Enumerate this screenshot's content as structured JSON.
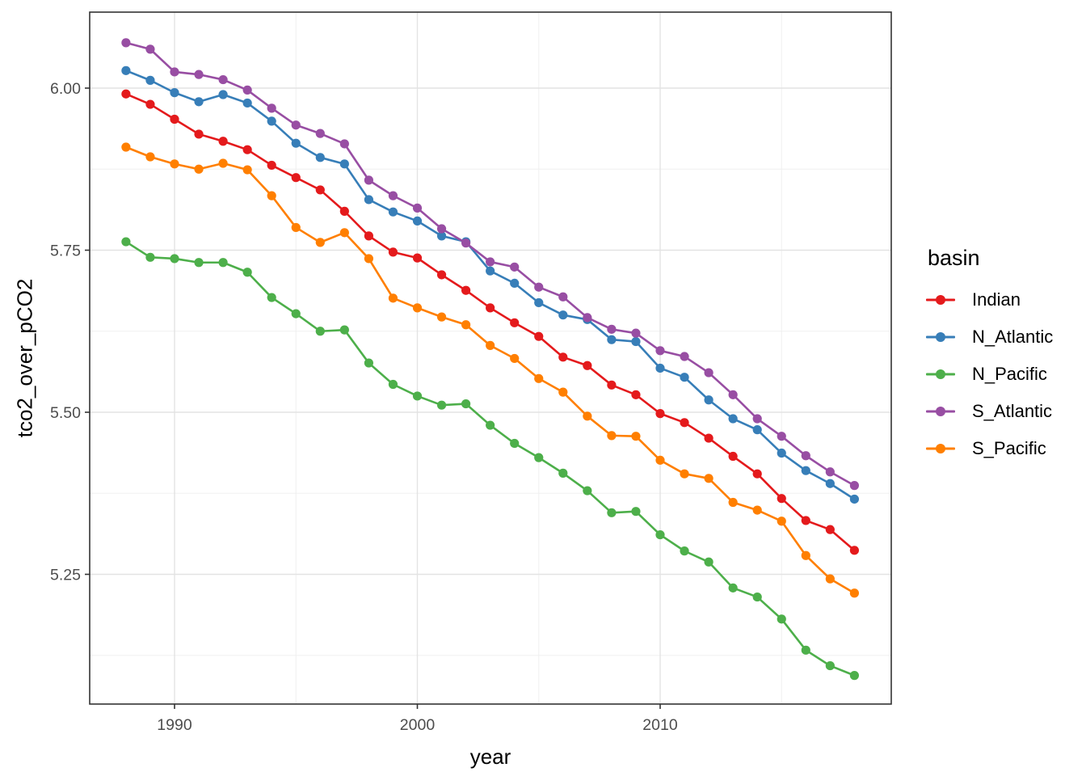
{
  "page": {
    "background": "#ffffff",
    "panel_border_color": "#333333",
    "grid_major_color": "#e3e3e3",
    "grid_minor_color": "#f0f0f0",
    "tick_color": "#333333",
    "tick_label_color": "#4d4d4d"
  },
  "legend": {
    "title": "basin"
  },
  "chart_data": {
    "type": "line",
    "title": "",
    "xlabel": "year",
    "ylabel": "tco2_over_pCO2",
    "legend_title": "basin",
    "legend_position": "right",
    "grid": "on",
    "xlim": [
      1986.4,
      2019.6
    ],
    "ylim": [
      5.046,
      6.118
    ],
    "x_ticks": [
      {
        "value": 1990,
        "label": "1990"
      },
      {
        "value": 2000,
        "label": "2000"
      },
      {
        "value": 2010,
        "label": "2010"
      }
    ],
    "x_minor": [
      1995,
      2005,
      2015
    ],
    "y_ticks": [
      {
        "value": 6.0,
        "label": "6.00"
      },
      {
        "value": 5.75,
        "label": "5.75"
      },
      {
        "value": 5.5,
        "label": "5.50"
      },
      {
        "value": 5.25,
        "label": "5.25"
      }
    ],
    "y_minor": [
      5.875,
      5.625,
      5.375,
      5.125
    ],
    "x": [
      1988,
      1989,
      1990,
      1991,
      1992,
      1993,
      1994,
      1995,
      1996,
      1997,
      1998,
      1999,
      2000,
      2001,
      2002,
      2003,
      2004,
      2005,
      2006,
      2007,
      2008,
      2009,
      2010,
      2011,
      2012,
      2013,
      2014,
      2015,
      2016,
      2017,
      2018
    ],
    "series": [
      {
        "name": "Indian",
        "color": "#E41A1C",
        "values": [
          5.991,
          5.975,
          5.952,
          5.929,
          5.918,
          5.905,
          5.881,
          5.862,
          5.843,
          5.81,
          5.772,
          5.747,
          5.738,
          5.712,
          5.688,
          5.661,
          5.638,
          5.617,
          5.585,
          5.572,
          5.542,
          5.527,
          5.498,
          5.484,
          5.46,
          5.432,
          5.405,
          5.367,
          5.333,
          5.319,
          5.287
        ]
      },
      {
        "name": "N_Atlantic",
        "color": "#377EB8",
        "values": [
          6.027,
          6.012,
          5.993,
          5.979,
          5.99,
          5.977,
          5.949,
          5.915,
          5.893,
          5.883,
          5.828,
          5.809,
          5.795,
          5.772,
          5.763,
          5.718,
          5.699,
          5.669,
          5.65,
          5.643,
          5.612,
          5.609,
          5.568,
          5.554,
          5.519,
          5.49,
          5.473,
          5.437,
          5.41,
          5.39,
          5.366
        ]
      },
      {
        "name": "N_Pacific",
        "color": "#4DAF4A",
        "values": [
          5.763,
          5.739,
          5.737,
          5.731,
          5.731,
          5.716,
          5.677,
          5.652,
          5.625,
          5.627,
          5.576,
          5.543,
          5.525,
          5.511,
          5.513,
          5.48,
          5.452,
          5.43,
          5.406,
          5.379,
          5.345,
          5.347,
          5.311,
          5.286,
          5.269,
          5.229,
          5.215,
          5.181,
          5.133,
          5.109,
          5.094
        ]
      },
      {
        "name": "S_Atlantic",
        "color": "#984EA3",
        "values": [
          6.07,
          6.06,
          6.025,
          6.021,
          6.013,
          5.997,
          5.969,
          5.943,
          5.93,
          5.914,
          5.858,
          5.834,
          5.815,
          5.783,
          5.761,
          5.732,
          5.724,
          5.693,
          5.678,
          5.646,
          5.628,
          5.622,
          5.595,
          5.586,
          5.561,
          5.527,
          5.49,
          5.463,
          5.433,
          5.408,
          5.387
        ]
      },
      {
        "name": "S_Pacific",
        "color": "#FF7F00",
        "values": [
          5.909,
          5.894,
          5.883,
          5.875,
          5.884,
          5.874,
          5.834,
          5.785,
          5.762,
          5.777,
          5.737,
          5.676,
          5.661,
          5.647,
          5.635,
          5.603,
          5.583,
          5.552,
          5.531,
          5.494,
          5.464,
          5.463,
          5.426,
          5.405,
          5.398,
          5.361,
          5.349,
          5.332,
          5.279,
          5.243,
          5.221
        ]
      }
    ]
  }
}
